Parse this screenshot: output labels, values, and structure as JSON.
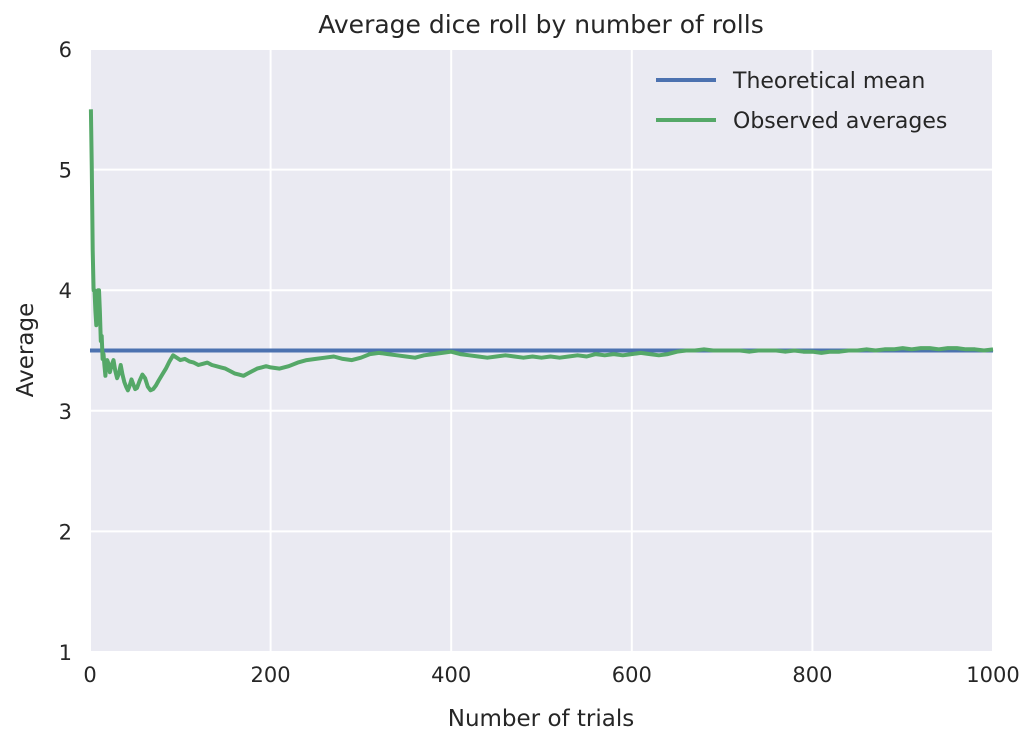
{
  "chart_data": {
    "type": "line",
    "title": "Average dice roll by number of rolls",
    "xlabel": "Number of trials",
    "ylabel": "Average",
    "xlim": [
      0,
      1000
    ],
    "ylim": [
      1,
      6
    ],
    "xticks": [
      0,
      200,
      400,
      600,
      800,
      1000
    ],
    "yticks": [
      1,
      2,
      3,
      4,
      5,
      6
    ],
    "xtick_labels": [
      "0",
      "200",
      "400",
      "600",
      "800",
      "1000"
    ],
    "ytick_labels": [
      "1",
      "2",
      "3",
      "4",
      "5",
      "6"
    ],
    "grid": true,
    "background": "#EAEAF2",
    "legend_position": "top-right",
    "series": [
      {
        "name": "Theoretical mean",
        "color": "#4C72B0",
        "x": [
          0,
          1000
        ],
        "y": [
          3.5,
          3.5
        ]
      },
      {
        "name": "Observed averages",
        "color": "#55A868",
        "x": [
          1,
          2,
          3,
          4,
          5,
          6,
          7,
          8,
          9,
          10,
          11,
          12,
          13,
          14,
          15,
          16,
          17,
          18,
          19,
          20,
          22,
          24,
          26,
          28,
          30,
          32,
          34,
          36,
          38,
          40,
          42,
          44,
          46,
          48,
          50,
          52,
          55,
          58,
          61,
          64,
          67,
          70,
          73,
          76,
          80,
          84,
          88,
          92,
          96,
          100,
          105,
          110,
          115,
          120,
          125,
          130,
          135,
          140,
          145,
          150,
          155,
          160,
          165,
          170,
          175,
          180,
          185,
          190,
          195,
          200,
          210,
          220,
          230,
          240,
          250,
          260,
          270,
          280,
          290,
          300,
          310,
          320,
          330,
          340,
          350,
          360,
          370,
          380,
          390,
          400,
          410,
          420,
          430,
          440,
          450,
          460,
          470,
          480,
          490,
          500,
          510,
          520,
          530,
          540,
          550,
          560,
          570,
          580,
          590,
          600,
          610,
          620,
          630,
          640,
          650,
          660,
          670,
          680,
          690,
          700,
          710,
          720,
          730,
          740,
          750,
          760,
          770,
          780,
          790,
          800,
          810,
          820,
          830,
          840,
          850,
          860,
          870,
          880,
          890,
          900,
          910,
          920,
          930,
          940,
          950,
          960,
          970,
          980,
          990,
          1000
        ],
        "y": [
          5.5,
          5.0,
          4.33,
          4.0,
          4.0,
          3.83,
          3.71,
          3.88,
          4.0,
          4.0,
          3.82,
          3.58,
          3.62,
          3.43,
          3.47,
          3.38,
          3.29,
          3.39,
          3.42,
          3.4,
          3.32,
          3.38,
          3.42,
          3.33,
          3.27,
          3.31,
          3.38,
          3.3,
          3.24,
          3.2,
          3.17,
          3.21,
          3.26,
          3.22,
          3.18,
          3.19,
          3.25,
          3.3,
          3.27,
          3.2,
          3.17,
          3.18,
          3.21,
          3.25,
          3.3,
          3.35,
          3.41,
          3.46,
          3.44,
          3.42,
          3.43,
          3.41,
          3.4,
          3.38,
          3.39,
          3.4,
          3.38,
          3.37,
          3.36,
          3.35,
          3.33,
          3.31,
          3.3,
          3.29,
          3.31,
          3.33,
          3.35,
          3.36,
          3.37,
          3.36,
          3.35,
          3.37,
          3.4,
          3.42,
          3.43,
          3.44,
          3.45,
          3.43,
          3.42,
          3.44,
          3.47,
          3.48,
          3.47,
          3.46,
          3.45,
          3.44,
          3.46,
          3.47,
          3.48,
          3.49,
          3.47,
          3.46,
          3.45,
          3.44,
          3.45,
          3.46,
          3.45,
          3.44,
          3.45,
          3.44,
          3.45,
          3.44,
          3.45,
          3.46,
          3.45,
          3.47,
          3.46,
          3.47,
          3.46,
          3.47,
          3.48,
          3.47,
          3.46,
          3.47,
          3.49,
          3.5,
          3.5,
          3.51,
          3.5,
          3.5,
          3.5,
          3.5,
          3.49,
          3.5,
          3.5,
          3.5,
          3.49,
          3.5,
          3.49,
          3.49,
          3.48,
          3.49,
          3.49,
          3.5,
          3.5,
          3.51,
          3.5,
          3.51,
          3.51,
          3.52,
          3.51,
          3.52,
          3.52,
          3.51,
          3.52,
          3.52,
          3.51,
          3.51,
          3.5,
          3.51
        ]
      }
    ]
  }
}
